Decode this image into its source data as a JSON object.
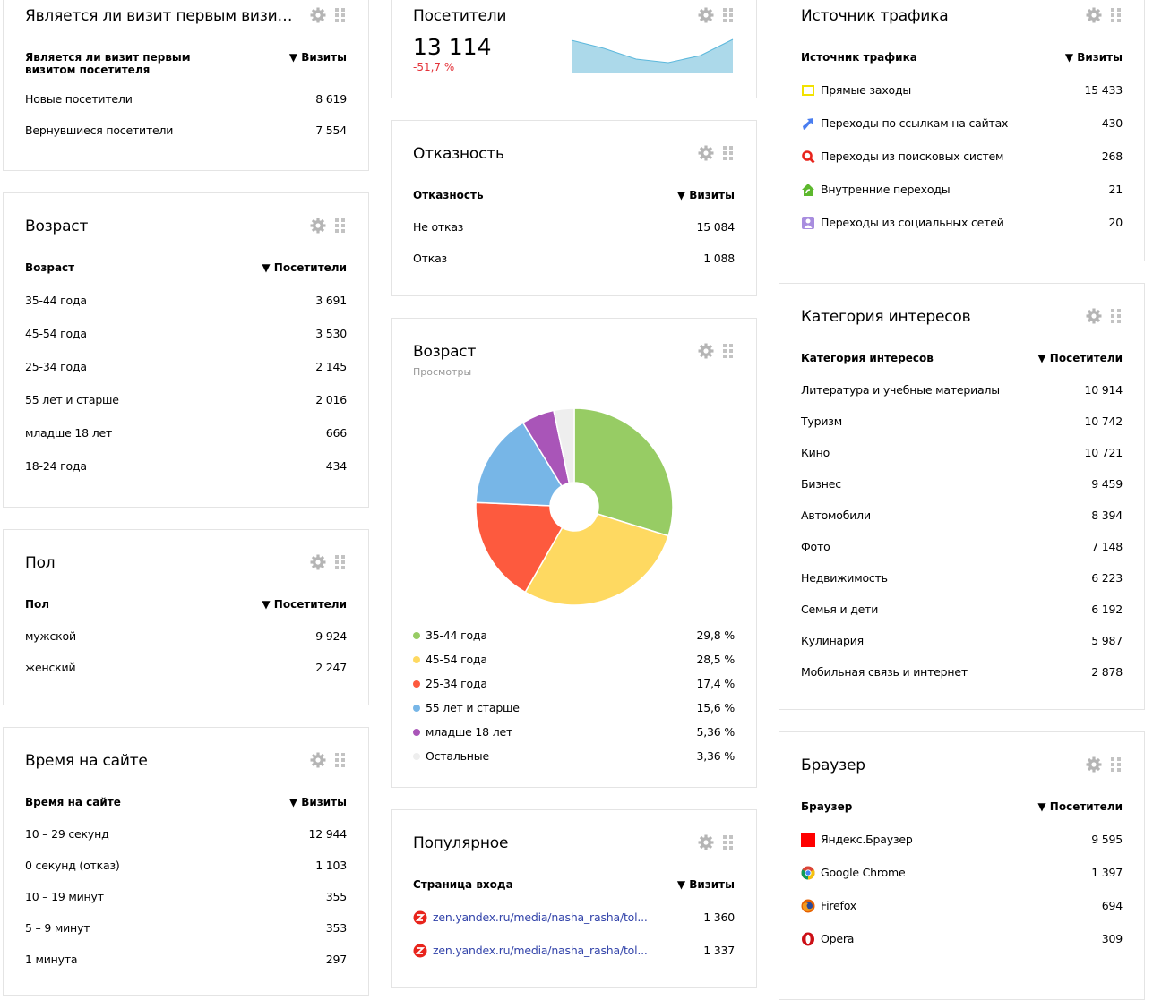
{
  "icons": {
    "settings": "gear-icon",
    "drag": "drag-handle-icon"
  },
  "first_visit": {
    "title": "Является ли визит первым визитом посетителя",
    "col1": "Является ли визит первым визитом посетителя",
    "col2": "▼ Визиты",
    "rows": [
      {
        "label": "Новые посетители",
        "value": "8 619"
      },
      {
        "label": "Вернувшиеся посетители",
        "value": "7 554"
      }
    ]
  },
  "age_table": {
    "title": "Возраст",
    "col1": "Возраст",
    "col2": "▼ Посетители",
    "rows": [
      {
        "label": "35-44 года",
        "value": "3 691"
      },
      {
        "label": "45-54 года",
        "value": "3 530"
      },
      {
        "label": "25-34 года",
        "value": "2 145"
      },
      {
        "label": "55 лет и старше",
        "value": "2 016"
      },
      {
        "label": "младше 18 лет",
        "value": "666"
      },
      {
        "label": "18-24 года",
        "value": "434"
      }
    ]
  },
  "gender": {
    "title": "Пол",
    "col1": "Пол",
    "col2": "▼ Посетители",
    "rows": [
      {
        "label": "мужской",
        "value": "9 924"
      },
      {
        "label": "женский",
        "value": "2 247"
      }
    ]
  },
  "time_on_site": {
    "title": "Время на сайте",
    "col1": "Время на сайте",
    "col2": "▼ Визиты",
    "rows": [
      {
        "label": "10 – 29 секунд",
        "value": "12 944"
      },
      {
        "label": "0 секунд (отказ)",
        "value": "1 103"
      },
      {
        "label": "10 – 19 минут",
        "value": "355"
      },
      {
        "label": "5 – 9 минут",
        "value": "353"
      },
      {
        "label": "1 минута",
        "value": "297"
      }
    ]
  },
  "visitors": {
    "title": "Посетители",
    "value": "13 114",
    "change": "-51,7 %",
    "sparkline": [
      36,
      27,
      15,
      11,
      19,
      37
    ]
  },
  "bounce": {
    "title": "Отказность",
    "col1": "Отказность",
    "col2": "▼ Визиты",
    "rows": [
      {
        "label": "Не отказ",
        "value": "15 084"
      },
      {
        "label": "Отказ",
        "value": "1 088"
      }
    ]
  },
  "age_pie": {
    "title": "Возраст",
    "subtitle": "Просмотры",
    "chart_data": {
      "type": "pie",
      "categories": [
        "35-44 года",
        "45-54 года",
        "25-34 года",
        "55 лет и старше",
        "младше 18 лет",
        "Остальные"
      ],
      "values": [
        29.8,
        28.5,
        17.4,
        15.6,
        5.36,
        3.36
      ],
      "labels": [
        "29,8 %",
        "28,5 %",
        "17,4 %",
        "15,6 %",
        "5,36 %",
        "3,36 %"
      ],
      "colors": [
        "#97cc64",
        "#fed961",
        "#fd5a3e",
        "#77b6e7",
        "#a955b8",
        "#eeeeee"
      ]
    }
  },
  "popular": {
    "title": "Популярное",
    "col1": "Страница входа",
    "col2": "▼ Визиты",
    "rows": [
      {
        "label": "zen.yandex.ru/media/nasha_rasha/tol...",
        "value": "1 360",
        "icon": "zen-icon"
      },
      {
        "label": "zen.yandex.ru/media/nasha_rasha/tol...",
        "value": "1 337",
        "icon": "zen-icon"
      }
    ]
  },
  "traffic": {
    "title": "Источник трафика",
    "col1": "Источник трафика",
    "col2": "▼ Визиты",
    "rows": [
      {
        "label": "Прямые заходы",
        "value": "15 433",
        "icon": "direct"
      },
      {
        "label": "Переходы по ссылкам на сайтах",
        "value": "430",
        "icon": "link"
      },
      {
        "label": "Переходы из поисковых систем",
        "value": "268",
        "icon": "search"
      },
      {
        "label": "Внутренние переходы",
        "value": "21",
        "icon": "internal"
      },
      {
        "label": "Переходы из социальных сетей",
        "value": "20",
        "icon": "social"
      }
    ]
  },
  "interests": {
    "title": "Категория интересов",
    "col1": "Категория интересов",
    "col2": "▼ Посетители",
    "rows": [
      {
        "label": "Литература и учебные материалы",
        "value": "10 914"
      },
      {
        "label": "Туризм",
        "value": "10 742"
      },
      {
        "label": "Кино",
        "value": "10 721"
      },
      {
        "label": "Бизнес",
        "value": "9 459"
      },
      {
        "label": "Автомобили",
        "value": "8 394"
      },
      {
        "label": "Фото",
        "value": "7 148"
      },
      {
        "label": "Недвижимость",
        "value": "6 223"
      },
      {
        "label": "Семья и дети",
        "value": "6 192"
      },
      {
        "label": "Кулинария",
        "value": "5 987"
      },
      {
        "label": "Мобильная связь и интернет",
        "value": "2 878"
      }
    ]
  },
  "browser": {
    "title": "Браузер",
    "col1": "Браузер",
    "col2": "▼ Посетители",
    "rows": [
      {
        "label": "Яндекс.Браузер",
        "value": "9 595",
        "icon": "yandex"
      },
      {
        "label": "Google Chrome",
        "value": "1 397",
        "icon": "chrome"
      },
      {
        "label": "Firefox",
        "value": "694",
        "icon": "firefox"
      },
      {
        "label": "Opera",
        "value": "309",
        "icon": "opera"
      }
    ]
  }
}
